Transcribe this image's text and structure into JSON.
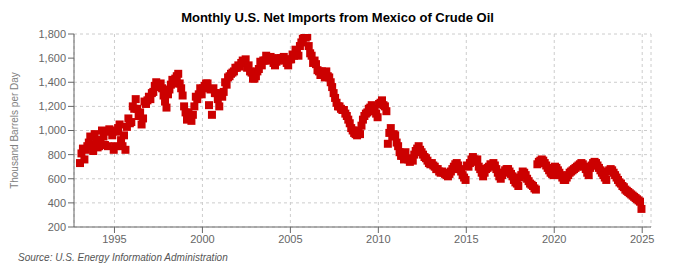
{
  "chart_data": {
    "type": "scatter",
    "title": "Monthly U.S. Net Imports from Mexico of Crude Oil",
    "ylabel": "Thousand Barrels per Day",
    "annotations": [
      "Source: U.S. Energy Information Administration"
    ],
    "color": "#cc0000",
    "marker": "square",
    "grid": true,
    "xlim": [
      1992.7,
      2025.5
    ],
    "xticks": [
      1995,
      2000,
      2005,
      2010,
      2015,
      2020,
      2025
    ],
    "ylim": [
      200,
      1800
    ],
    "yticks": [
      200,
      400,
      600,
      800,
      {
        "value": 1000,
        "label": "1,000"
      },
      {
        "value": 1200,
        "label": "1,200"
      },
      {
        "value": 1400,
        "label": "1,400"
      },
      {
        "value": 1600,
        "label": "1,600"
      },
      {
        "value": 1800,
        "label": "1,800"
      }
    ],
    "x": [
      1993.042,
      1993.125,
      1993.208,
      1993.292,
      1993.375,
      1993.458,
      1993.542,
      1993.625,
      1993.708,
      1993.792,
      1993.875,
      1993.958,
      1994.042,
      1994.125,
      1994.208,
      1994.292,
      1994.375,
      1994.458,
      1994.542,
      1994.625,
      1994.708,
      1994.792,
      1994.875,
      1994.958,
      1995.042,
      1995.125,
      1995.208,
      1995.292,
      1995.375,
      1995.458,
      1995.542,
      1995.625,
      1995.708,
      1995.792,
      1995.875,
      1995.958,
      1996.042,
      1996.125,
      1996.208,
      1996.292,
      1996.375,
      1996.458,
      1996.542,
      1996.625,
      1996.708,
      1996.792,
      1996.875,
      1996.958,
      1997.042,
      1997.125,
      1997.208,
      1997.292,
      1997.375,
      1997.458,
      1997.542,
      1997.625,
      1997.708,
      1997.792,
      1997.875,
      1997.958,
      1998.042,
      1998.125,
      1998.208,
      1998.292,
      1998.375,
      1998.458,
      1998.542,
      1998.625,
      1998.708,
      1998.792,
      1998.875,
      1998.958,
      1999.042,
      1999.125,
      1999.208,
      1999.292,
      1999.375,
      1999.458,
      1999.542,
      1999.625,
      1999.708,
      1999.792,
      1999.875,
      1999.958,
      2000.042,
      2000.125,
      2000.208,
      2000.292,
      2000.375,
      2000.458,
      2000.542,
      2000.625,
      2000.708,
      2000.792,
      2000.875,
      2000.958,
      2001.042,
      2001.125,
      2001.208,
      2001.292,
      2001.375,
      2001.458,
      2001.542,
      2001.625,
      2001.708,
      2001.792,
      2001.875,
      2001.958,
      2002.042,
      2002.125,
      2002.208,
      2002.292,
      2002.375,
      2002.458,
      2002.542,
      2002.625,
      2002.708,
      2002.792,
      2002.875,
      2002.958,
      2003.042,
      2003.125,
      2003.208,
      2003.292,
      2003.375,
      2003.458,
      2003.542,
      2003.625,
      2003.708,
      2003.792,
      2003.875,
      2003.958,
      2004.042,
      2004.125,
      2004.208,
      2004.292,
      2004.375,
      2004.458,
      2004.542,
      2004.625,
      2004.708,
      2004.792,
      2004.875,
      2004.958,
      2005.042,
      2005.125,
      2005.208,
      2005.292,
      2005.375,
      2005.458,
      2005.542,
      2005.625,
      2005.708,
      2005.792,
      2005.875,
      2005.958,
      2006.042,
      2006.125,
      2006.208,
      2006.292,
      2006.375,
      2006.458,
      2006.542,
      2006.625,
      2006.708,
      2006.792,
      2006.875,
      2006.958,
      2007.042,
      2007.125,
      2007.208,
      2007.292,
      2007.375,
      2007.458,
      2007.542,
      2007.625,
      2007.708,
      2007.792,
      2007.875,
      2007.958,
      2008.042,
      2008.125,
      2008.208,
      2008.292,
      2008.375,
      2008.458,
      2008.542,
      2008.625,
      2008.708,
      2008.792,
      2008.875,
      2008.958,
      2009.042,
      2009.125,
      2009.208,
      2009.292,
      2009.375,
      2009.458,
      2009.542,
      2009.625,
      2009.708,
      2009.792,
      2009.875,
      2009.958,
      2010.042,
      2010.125,
      2010.208,
      2010.292,
      2010.375,
      2010.458,
      2010.542,
      2010.625,
      2010.708,
      2010.792,
      2010.875,
      2010.958,
      2011.042,
      2011.125,
      2011.208,
      2011.292,
      2011.375,
      2011.458,
      2011.542,
      2011.625,
      2011.708,
      2011.792,
      2011.875,
      2011.958,
      2012.042,
      2012.125,
      2012.208,
      2012.292,
      2012.375,
      2012.458,
      2012.542,
      2012.625,
      2012.708,
      2012.792,
      2012.875,
      2012.958,
      2013.042,
      2013.125,
      2013.208,
      2013.292,
      2013.375,
      2013.458,
      2013.542,
      2013.625,
      2013.708,
      2013.792,
      2013.875,
      2013.958,
      2014.042,
      2014.125,
      2014.208,
      2014.292,
      2014.375,
      2014.458,
      2014.542,
      2014.625,
      2014.708,
      2014.792,
      2014.875,
      2014.958,
      2015.042,
      2015.125,
      2015.208,
      2015.292,
      2015.375,
      2015.458,
      2015.542,
      2015.625,
      2015.708,
      2015.792,
      2015.875,
      2015.958,
      2016.042,
      2016.125,
      2016.208,
      2016.292,
      2016.375,
      2016.458,
      2016.542,
      2016.625,
      2016.708,
      2016.792,
      2016.875,
      2016.958,
      2017.042,
      2017.125,
      2017.208,
      2017.292,
      2017.375,
      2017.458,
      2017.542,
      2017.625,
      2017.708,
      2017.792,
      2017.875,
      2017.958,
      2018.042,
      2018.125,
      2018.208,
      2018.292,
      2018.375,
      2018.458,
      2018.542,
      2018.625,
      2018.708,
      2018.792,
      2018.875,
      2018.958,
      2019.042,
      2019.125,
      2019.208,
      2019.292,
      2019.375,
      2019.458,
      2019.542,
      2019.625,
      2019.708,
      2019.792,
      2019.875,
      2019.958,
      2020.042,
      2020.125,
      2020.208,
      2020.292,
      2020.375,
      2020.458,
      2020.542,
      2020.625,
      2020.708,
      2020.792,
      2020.875,
      2020.958,
      2021.042,
      2021.125,
      2021.208,
      2021.292,
      2021.375,
      2021.458,
      2021.542,
      2021.625,
      2021.708,
      2021.792,
      2021.875,
      2021.958,
      2022.042,
      2022.125,
      2022.208,
      2022.292,
      2022.375,
      2022.458,
      2022.542,
      2022.625,
      2022.708,
      2022.792,
      2022.875,
      2022.958,
      2023.042,
      2023.125,
      2023.208,
      2023.292,
      2023.375,
      2023.458,
      2023.542,
      2023.625,
      2023.708,
      2023.792,
      2023.875,
      2023.958,
      2024.042,
      2024.125,
      2024.208,
      2024.292,
      2024.375,
      2024.458,
      2024.542,
      2024.625,
      2024.708,
      2024.792,
      2024.875,
      2024.958
    ],
    "values": [
      730,
      810,
      850,
      760,
      840,
      870,
      900,
      950,
      880,
      830,
      970,
      920,
      860,
      870,
      920,
      1000,
      950,
      880,
      990,
      870,
      1010,
      1000,
      960,
      840,
      870,
      990,
      1020,
      1050,
      920,
      870,
      960,
      840,
      1030,
      1100,
      1060,
      1070,
      1200,
      1180,
      1260,
      1180,
      1120,
      1150,
      1050,
      1100,
      1240,
      1220,
      1250,
      1280,
      1260,
      1310,
      1320,
      1370,
      1400,
      1380,
      1360,
      1390,
      1350,
      1290,
      1240,
      1190,
      1300,
      1340,
      1380,
      1420,
      1390,
      1430,
      1450,
      1470,
      1390,
      1350,
      1290,
      1200,
      1150,
      1090,
      1150,
      1100,
      1080,
      1130,
      1200,
      1280,
      1260,
      1300,
      1350,
      1300,
      1350,
      1370,
      1390,
      1390,
      1210,
      1340,
      1130,
      1350,
      1310,
      1310,
      1260,
      1200,
      1300,
      1280,
      1320,
      1400,
      1380,
      1440,
      1450,
      1470,
      1480,
      1490,
      1520,
      1520,
      1540,
      1530,
      1560,
      1580,
      1560,
      1590,
      1520,
      1540,
      1490,
      1480,
      1430,
      1430,
      1450,
      1490,
      1510,
      1570,
      1540,
      1580,
      1580,
      1620,
      1580,
      1590,
      1610,
      1600,
      1560,
      1540,
      1570,
      1580,
      1600,
      1600,
      1600,
      1610,
      1580,
      1560,
      1540,
      1590,
      1590,
      1630,
      1620,
      1670,
      1640,
      1620,
      1700,
      1730,
      1760,
      1790,
      1770,
      1780,
      1700,
      1640,
      1620,
      1560,
      1580,
      1550,
      1500,
      1490,
      1460,
      1490,
      1480,
      1440,
      1490,
      1450,
      1440,
      1400,
      1360,
      1310,
      1270,
      1230,
      1200,
      1200,
      1180,
      1170,
      1170,
      1140,
      1120,
      1090,
      1060,
      1020,
      1000,
      980,
      970,
      960,
      1000,
      970,
      1040,
      1090,
      1120,
      1140,
      1150,
      1180,
      1190,
      1210,
      1180,
      1160,
      1140,
      1110,
      1220,
      1230,
      1250,
      1210,
      1200,
      1160,
      890,
      980,
      1020,
      950,
      970,
      960,
      900,
      870,
      820,
      790,
      790,
      760,
      820,
      770,
      760,
      740,
      760,
      750,
      800,
      830,
      850,
      870,
      840,
      820,
      800,
      780,
      770,
      750,
      730,
      720,
      730,
      710,
      700,
      680,
      680,
      660,
      650,
      660,
      650,
      640,
      630,
      620,
      640,
      660,
      680,
      700,
      720,
      730,
      710,
      680,
      660,
      630,
      610,
      590,
      710,
      700,
      730,
      760,
      780,
      760,
      740,
      760,
      700,
      680,
      650,
      620,
      650,
      680,
      690,
      700,
      720,
      710,
      730,
      710,
      680,
      650,
      620,
      600,
      630,
      650,
      670,
      680,
      680,
      660,
      640,
      620,
      590,
      570,
      560,
      540,
      610,
      630,
      660,
      650,
      630,
      600,
      580,
      560,
      550,
      540,
      520,
      510,
      720,
      740,
      750,
      760,
      750,
      730,
      710,
      690,
      670,
      650,
      640,
      630,
      700,
      690,
      670,
      650,
      630,
      610,
      590,
      590,
      610,
      630,
      650,
      660,
      670,
      680,
      690,
      700,
      710,
      720,
      730,
      720,
      700,
      680,
      650,
      630,
      690,
      710,
      730,
      740,
      730,
      710,
      690,
      670,
      650,
      630,
      610,
      590,
      660,
      670,
      680,
      670,
      650,
      630,
      610,
      590,
      570,
      560,
      540,
      530,
      510,
      500,
      490,
      480,
      470,
      460,
      450,
      440,
      430,
      420,
      410,
      350
    ]
  }
}
